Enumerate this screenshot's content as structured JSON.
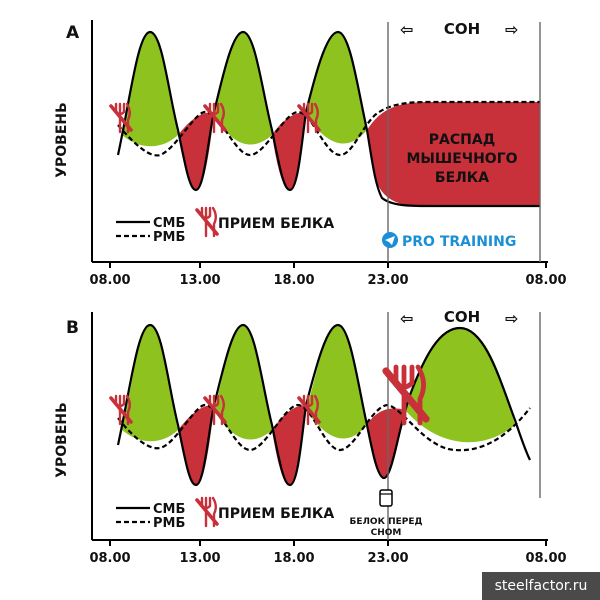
{
  "panels": [
    {
      "id": "A",
      "letter": "A",
      "y_axis_label": "УРОВЕНЬ",
      "sleep_label": "СОН",
      "sleep_arrow_left": "⇦",
      "sleep_arrow_right": "⇨",
      "annotation": [
        "РАСПАД",
        "МЫШЕЧНОГО",
        "БЕЛКА"
      ],
      "legend": {
        "smb": "СМБ",
        "rmb": "РМБ",
        "intake": "ПРИЕМ БЕЛКА"
      },
      "ticks": [
        "08.00",
        "13.00",
        "18.00",
        "23.00",
        "08.00"
      ],
      "brand": "PRO TRAINING"
    },
    {
      "id": "B",
      "letter": "B",
      "y_axis_label": "УРОВЕНЬ",
      "sleep_label": "СОН",
      "sleep_arrow_left": "⇦",
      "sleep_arrow_right": "⇨",
      "legend": {
        "smb": "СМБ",
        "rmb": "РМБ",
        "intake": "ПРИЕМ БЕЛКА"
      },
      "ticks": [
        "08.00",
        "13.00",
        "18.00",
        "23.00",
        "08.00"
      ],
      "casein_label": [
        "БЕЛОК ПЕРЕД",
        "СНОМ"
      ]
    }
  ],
  "colors": {
    "synthesis": "#8dc21f",
    "breakdown": "#c8303a",
    "brand": "#1a8fd6"
  },
  "watermark": "steelfactor.ru"
}
